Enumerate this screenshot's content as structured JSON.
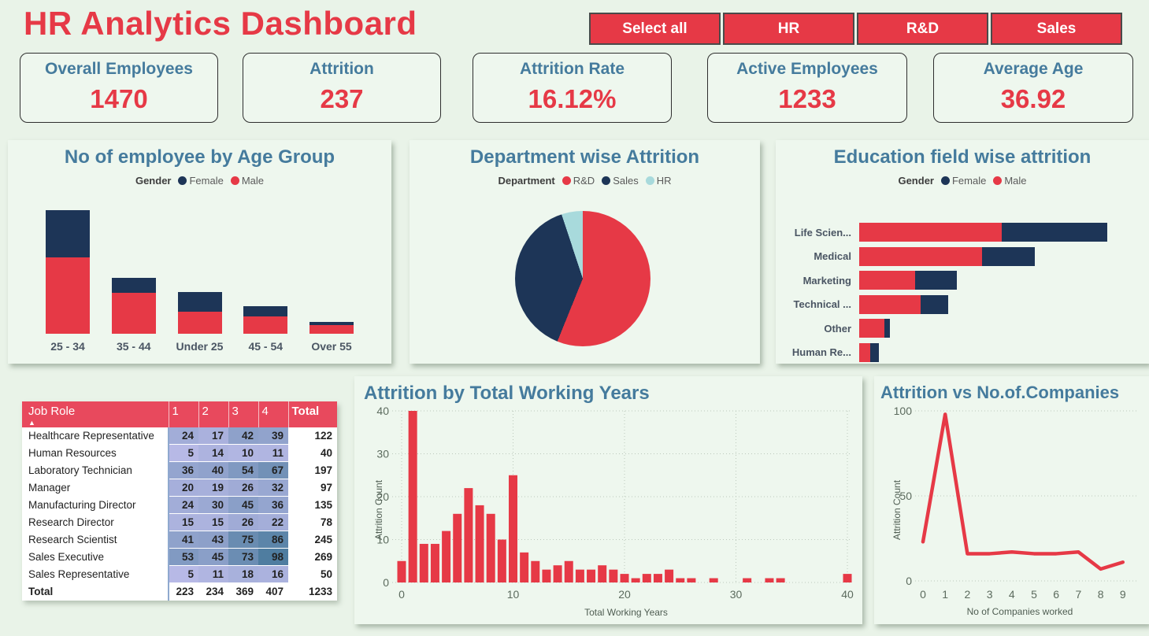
{
  "page": {
    "title": "HR Analytics Dashboard"
  },
  "filters": {
    "buttons": [
      {
        "label": "Select all"
      },
      {
        "label": "HR"
      },
      {
        "label": "R&D"
      },
      {
        "label": "Sales"
      }
    ]
  },
  "kpis": [
    {
      "label": "Overall Employees",
      "value": "1470"
    },
    {
      "label": "Attrition",
      "value": "237"
    },
    {
      "label": "Attrition Rate",
      "value": "16.12%"
    },
    {
      "label": "Active Employees",
      "value": "1233"
    },
    {
      "label": "Average Age",
      "value": "36.92"
    }
  ],
  "icons": {
    "sort_ascending": "▲",
    "legend_dot": "●"
  },
  "colors": {
    "red": "#e63946",
    "navy": "#1d3557",
    "steel": "#457b9d",
    "lightblue": "#a8dadc",
    "page_bg": "#e9f3e8",
    "panel_bg": "#eef7ee",
    "heat_low": "#b7b9e6",
    "heat_high": "#4f7da0",
    "grid": "#bcc9bc",
    "tick_text": "#5c6b5e"
  },
  "chart_data": [
    {
      "id": "age_group",
      "type": "bar",
      "stacked": true,
      "title": "No of employee by Age Group",
      "legend_title": "Gender",
      "legend": [
        {
          "label": "Female",
          "color": "navy"
        },
        {
          "label": "Male",
          "color": "red"
        }
      ],
      "categories": [
        "25 - 34",
        "35 - 44",
        "Under 25",
        "45 - 54",
        "Over 55"
      ],
      "series": [
        {
          "name": "Male",
          "color": "red",
          "values": [
            69,
            37,
            20,
            16,
            8
          ]
        },
        {
          "name": "Female",
          "color": "navy",
          "values": [
            43,
            14,
            18,
            9,
            3
          ]
        }
      ],
      "totals": [
        112,
        51,
        38,
        25,
        11
      ],
      "ymax": 112,
      "grid": false,
      "legend_position": "top"
    },
    {
      "id": "department",
      "type": "pie",
      "title": "Department wise Attrition",
      "legend_title": "Department",
      "legend": [
        {
          "label": "R&D",
          "color": "red"
        },
        {
          "label": "Sales",
          "color": "navy"
        },
        {
          "label": "HR",
          "color": "lightblue"
        }
      ],
      "slices": [
        {
          "label": "R&D",
          "value": 133,
          "color": "red"
        },
        {
          "label": "Sales",
          "value": 92,
          "color": "navy"
        },
        {
          "label": "HR",
          "value": 12,
          "color": "lightblue"
        }
      ],
      "legend_position": "top"
    },
    {
      "id": "education",
      "type": "bar",
      "orientation": "horizontal",
      "stacked": true,
      "title": "Education field wise attrition",
      "legend_title": "Gender",
      "legend": [
        {
          "label": "Female",
          "color": "navy"
        },
        {
          "label": "Male",
          "color": "red"
        }
      ],
      "categories": [
        "Life Scien...",
        "Medical",
        "Marketing",
        "Technical ...",
        "Other",
        "Human Re..."
      ],
      "series": [
        {
          "name": "Male",
          "color": "red",
          "values": [
            51,
            44,
            20,
            22,
            9,
            4
          ]
        },
        {
          "name": "Female",
          "color": "navy",
          "values": [
            38,
            19,
            15,
            10,
            2,
            3
          ]
        }
      ],
      "totals": [
        89,
        63,
        35,
        32,
        11,
        7
      ],
      "xmax": 89,
      "grid": false,
      "legend_position": "top"
    },
    {
      "id": "working_years",
      "type": "bar",
      "title": "Attrition by Total Working Years",
      "xlabel": "Total Working Years",
      "ylabel": "Attrition Count",
      "ylim": [
        0,
        40
      ],
      "yticks": [
        0,
        10,
        20,
        30,
        40
      ],
      "xticks": [
        0,
        10,
        20,
        30,
        40
      ],
      "x_range": [
        0,
        40
      ],
      "values": [
        5,
        40,
        9,
        9,
        12,
        16,
        22,
        18,
        16,
        10,
        25,
        7,
        5,
        3,
        4,
        5,
        3,
        3,
        4,
        3,
        2,
        1,
        2,
        2,
        3,
        1,
        1,
        0,
        1,
        0,
        0,
        1,
        0,
        1,
        1,
        0,
        0,
        0,
        0,
        0,
        2
      ],
      "grid": "dotted",
      "legend_position": "none"
    },
    {
      "id": "companies",
      "type": "line",
      "title": "Attrition vs No.of.Companies",
      "xlabel": "No of Companies worked",
      "ylabel": "Attrition Count",
      "ylim": [
        0,
        100
      ],
      "yticks": [
        0,
        50,
        100
      ],
      "x": [
        0,
        1,
        2,
        3,
        4,
        5,
        6,
        7,
        8,
        9
      ],
      "values": [
        23,
        98,
        16,
        16,
        17,
        16,
        16,
        17,
        7,
        11
      ],
      "grid": "dotted",
      "legend_position": "none"
    },
    {
      "id": "job_role_table",
      "type": "table",
      "title_column": "Job Role",
      "columns": [
        "1",
        "2",
        "3",
        "4",
        "Total"
      ],
      "rows": [
        {
          "role": "Healthcare Representative",
          "values": [
            24,
            17,
            42,
            39
          ],
          "total": 122
        },
        {
          "role": "Human Resources",
          "values": [
            5,
            14,
            10,
            11
          ],
          "total": 40
        },
        {
          "role": "Laboratory Technician",
          "values": [
            36,
            40,
            54,
            67
          ],
          "total": 197
        },
        {
          "role": "Manager",
          "values": [
            20,
            19,
            26,
            32
          ],
          "total": 97
        },
        {
          "role": "Manufacturing Director",
          "values": [
            24,
            30,
            45,
            36
          ],
          "total": 135
        },
        {
          "role": "Research Director",
          "values": [
            15,
            15,
            26,
            22
          ],
          "total": 78
        },
        {
          "role": "Research Scientist",
          "values": [
            41,
            43,
            75,
            86
          ],
          "total": 245
        },
        {
          "role": "Sales Executive",
          "values": [
            53,
            45,
            73,
            98
          ],
          "total": 269
        },
        {
          "role": "Sales Representative",
          "values": [
            5,
            11,
            18,
            16
          ],
          "total": 50
        }
      ],
      "total_row": {
        "label": "Total",
        "values": [
          223,
          234,
          369,
          407
        ],
        "total": 1233
      },
      "heat_min": 5,
      "heat_max": 98
    }
  ]
}
